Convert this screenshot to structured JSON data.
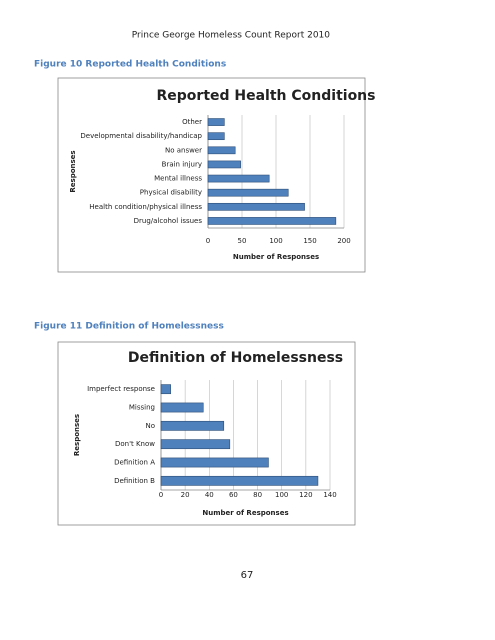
{
  "header": "Prince George Homeless Count Report 2010",
  "captions": [
    "Figure 10 Reported Health Conditions",
    "Figure 11 Definition of Homelessness"
  ],
  "page_number": "67",
  "chart_data": [
    {
      "type": "barh",
      "title": "Reported Health Conditions",
      "categories": [
        "Other",
        "Developmental disability/handicap",
        "No answer",
        "Brain injury",
        "Mental illness",
        "Physical disability",
        "Health condition/physical illness",
        "Drug/alcohol issues"
      ],
      "values": [
        24,
        24,
        40,
        48,
        90,
        118,
        142,
        188
      ],
      "color": "#4f81bd",
      "xlabel": "Number of Responses",
      "ylabel": "Responses",
      "xlim": [
        0,
        200
      ],
      "xticks": [
        0,
        50,
        100,
        150,
        200
      ],
      "grid": true
    },
    {
      "type": "barh",
      "title": "Definition of Homelessness",
      "categories": [
        "Imperfect response",
        "Missing",
        "No",
        "Don't Know",
        "Definition A",
        "Definition B"
      ],
      "values": [
        8,
        35,
        52,
        57,
        89,
        130
      ],
      "color": "#4f81bd",
      "xlabel": "Number of Responses",
      "ylabel": "Responses",
      "xlim": [
        0,
        140
      ],
      "xticks": [
        0,
        20,
        40,
        60,
        80,
        100,
        120,
        140
      ],
      "grid": true
    }
  ]
}
